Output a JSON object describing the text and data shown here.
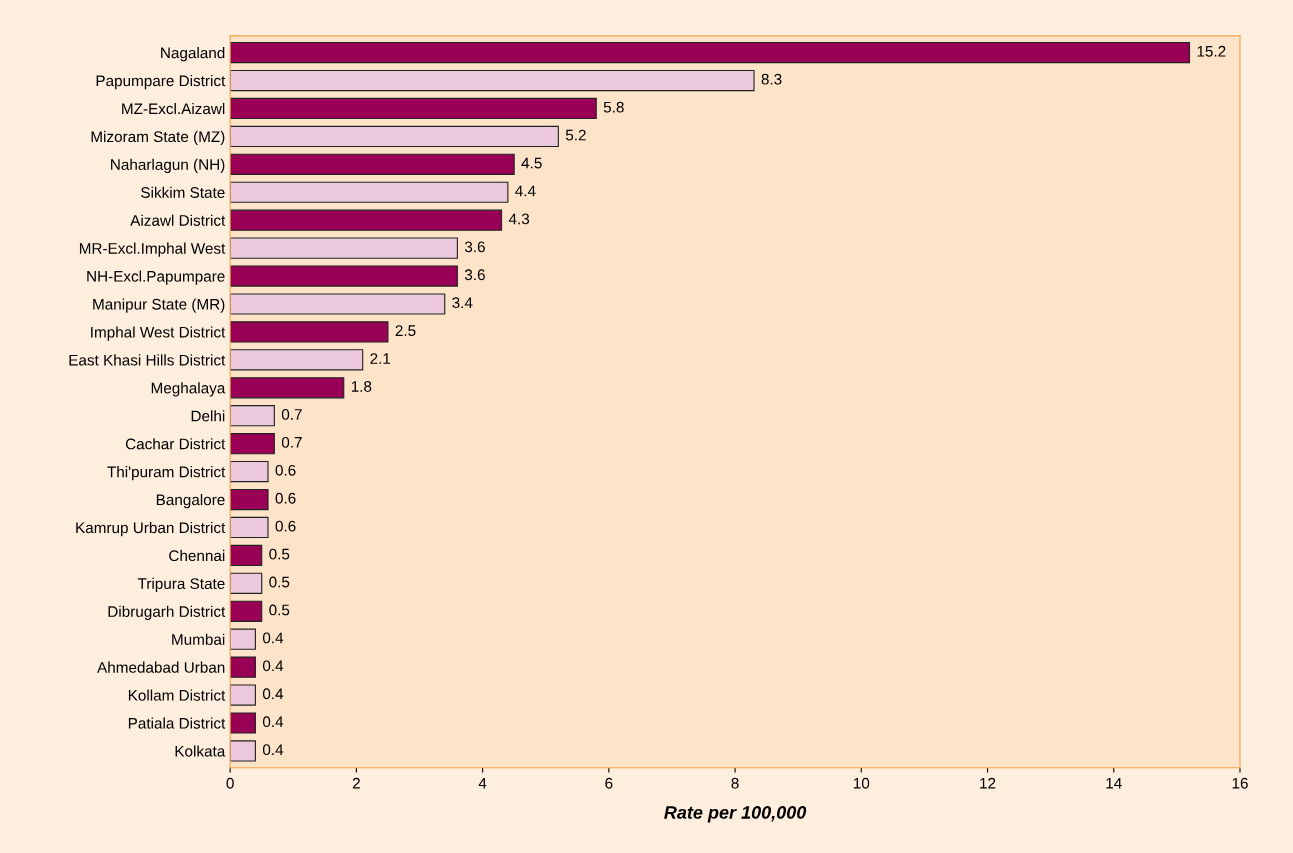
{
  "chart_data": {
    "type": "bar",
    "orientation": "horizontal",
    "xlabel": "Rate per 100,000",
    "categories": [
      "Nagaland",
      "Papumpare District",
      "MZ-Excl.Aizawl",
      "Mizoram State (MZ)",
      "Naharlagun (NH)",
      "Sikkim State",
      "Aizawl District",
      "MR-Excl.Imphal West",
      "NH-Excl.Papumpare",
      "Manipur State (MR)",
      "Imphal West District",
      "East Khasi Hills District",
      "Meghalaya",
      "Delhi",
      "Cachar District",
      "Thi'puram District",
      "Bangalore",
      "Kamrup Urban District",
      "Chennai",
      "Tripura State",
      "Dibrugarh District",
      "Mumbai",
      "Ahmedabad Urban",
      "Kollam District",
      "Patiala District",
      "Kolkata"
    ],
    "values": [
      15.2,
      8.3,
      5.8,
      5.2,
      4.5,
      4.4,
      4.3,
      3.6,
      3.6,
      3.4,
      2.5,
      2.1,
      1.8,
      0.7,
      0.7,
      0.6,
      0.6,
      0.6,
      0.5,
      0.5,
      0.5,
      0.4,
      0.4,
      0.4,
      0.4,
      0.4
    ],
    "colors": [
      "#990055",
      "#ecc8dc",
      "#990055",
      "#ecc8dc",
      "#990055",
      "#ecc8dc",
      "#990055",
      "#ecc8dc",
      "#990055",
      "#ecc8dc",
      "#990055",
      "#ecc8dc",
      "#990055",
      "#ecc8dc",
      "#990055",
      "#ecc8dc",
      "#990055",
      "#ecc8dc",
      "#990055",
      "#ecc8dc",
      "#990055",
      "#ecc8dc",
      "#990055",
      "#ecc8dc",
      "#990055",
      "#ecc8dc"
    ],
    "xlim": [
      0,
      16
    ],
    "xticks": [
      0,
      2,
      4,
      6,
      8,
      10,
      12,
      14,
      16
    ],
    "data_labels": true,
    "grid": false,
    "legend": false
  }
}
